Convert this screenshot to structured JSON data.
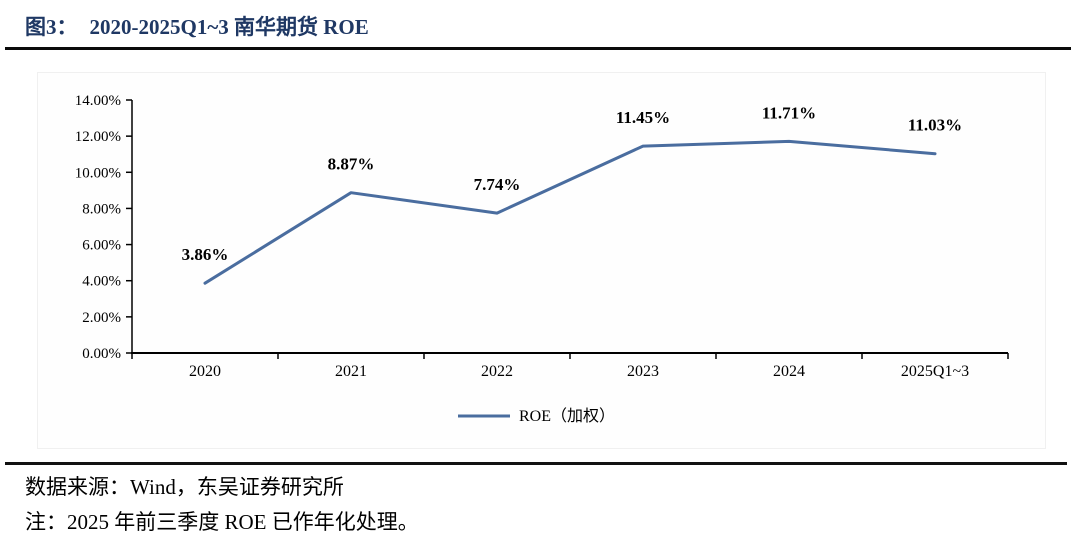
{
  "header": {
    "figure_label": "图3：",
    "title": "2020-2025Q1~3 南华期货 ROE",
    "title_color": "#1f3864"
  },
  "footer": {
    "source": "数据来源：Wind，东吴证券研究所",
    "note": "注：2025 年前三季度 ROE 已作年化处理。"
  },
  "chart_data": {
    "type": "line",
    "title": "2020-2025Q1~3 南华期货 ROE",
    "categories": [
      "2020",
      "2021",
      "2022",
      "2023",
      "2024",
      "2025Q1~3"
    ],
    "series": [
      {
        "name": "ROE（加权）",
        "values": [
          3.86,
          8.87,
          7.74,
          11.45,
          11.71,
          11.03
        ]
      }
    ],
    "value_labels": [
      "3.86%",
      "8.87%",
      "7.74%",
      "11.45%",
      "11.71%",
      "11.03%"
    ],
    "ylim": [
      0,
      14
    ],
    "y_ticks": [
      0,
      2,
      4,
      6,
      8,
      10,
      12,
      14
    ],
    "y_tick_labels": [
      "0.00%",
      "2.00%",
      "4.00%",
      "6.00%",
      "8.00%",
      "10.00%",
      "12.00%",
      "14.00%"
    ],
    "legend": [
      "ROE（加权）"
    ],
    "legend_position": "bottom-center",
    "grid": false,
    "markers": false,
    "line_color": "#4a6d9f",
    "axis_color": "#000000",
    "label_color": "#000000"
  }
}
